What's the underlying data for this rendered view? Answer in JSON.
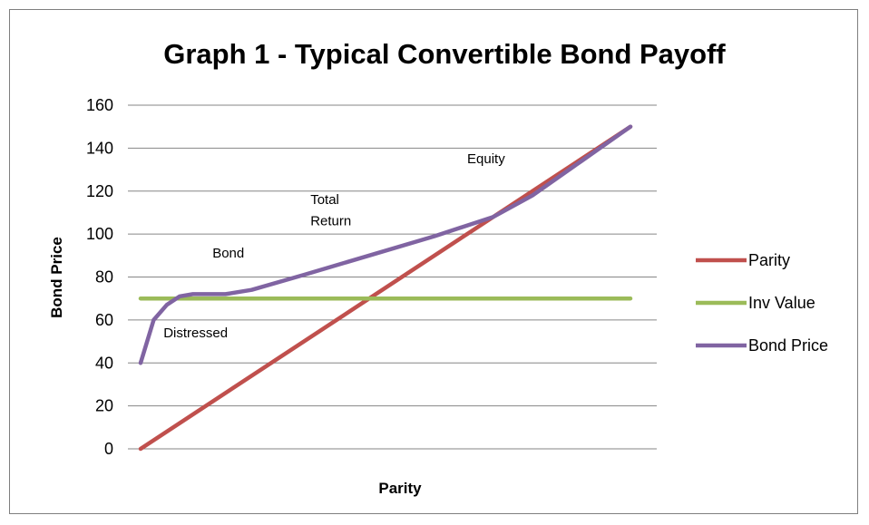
{
  "chart_data": {
    "type": "line",
    "title": "Graph 1 - Typical Convertible Bond Payoff",
    "xlabel": "Parity",
    "ylabel": "Bond Price",
    "ylim": [
      0,
      160
    ],
    "yticks": [
      "0",
      "20",
      "40",
      "60",
      "80",
      "100",
      "120",
      "140",
      "160"
    ],
    "xlim": [
      0,
      150
    ],
    "grid": true,
    "legend_position": "right",
    "series": [
      {
        "name": "Parity",
        "color": "#c0504d",
        "points": [
          [
            0,
            0
          ],
          [
            150,
            150
          ]
        ]
      },
      {
        "name": "Inv Value",
        "color": "#9bbb59",
        "points": [
          [
            0,
            70
          ],
          [
            150,
            70
          ]
        ]
      },
      {
        "name": "Bond Price",
        "color": "#8064a2",
        "points": [
          [
            0,
            40
          ],
          [
            4,
            60
          ],
          [
            8,
            67
          ],
          [
            12,
            71
          ],
          [
            16,
            72
          ],
          [
            26,
            72
          ],
          [
            34,
            74
          ],
          [
            50,
            81
          ],
          [
            70,
            90
          ],
          [
            90,
            99
          ],
          [
            108,
            108
          ],
          [
            120,
            118
          ],
          [
            135,
            134
          ],
          [
            150,
            150
          ]
        ]
      }
    ],
    "annotations": [
      {
        "text": "Distressed",
        "x": 7,
        "y": 52
      },
      {
        "text": "Bond",
        "x": 22,
        "y": 89
      },
      {
        "text": "Total",
        "x": 52,
        "y": 114
      },
      {
        "text": "Return",
        "x": 52,
        "y": 104
      },
      {
        "text": "Equity",
        "x": 100,
        "y": 133
      }
    ]
  }
}
